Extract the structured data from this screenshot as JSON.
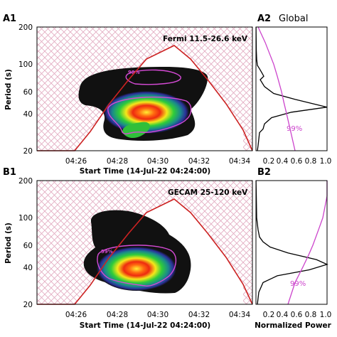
{
  "chart_data": [
    {
      "panel": "A1",
      "type": "heatmap",
      "annotation": "Fermi 11.5-26.6 keV",
      "xlabel": "Start Time (14-Jul-22 04:24:00)",
      "ylabel": "Period (s)",
      "x_ticks": [
        "04:26",
        "04:28",
        "04:30",
        "04:32",
        "04:34"
      ],
      "y_ticks": [
        20,
        40,
        60,
        100,
        200
      ],
      "xlim_minutes": [
        0.9,
        11.5
      ],
      "ylim": [
        20,
        200
      ],
      "y_scale": "log",
      "significance_label": "99%",
      "peak": {
        "time": "04:29:30",
        "period": 45
      },
      "cone_of_influence_peak": {
        "time": "04:29:40",
        "period": 150
      },
      "colors": {
        "coi": "#cc2222",
        "hatch": "#e8b4c8",
        "contour": "#cc44cc"
      }
    },
    {
      "panel": "A2",
      "type": "line",
      "title": "Global",
      "xlabel": "",
      "ylabel": "Period (s)",
      "x_ticks": [
        "0.2",
        "0.4",
        "0.6",
        "0.8",
        "1.0"
      ],
      "xlim": [
        0.0,
        1.0
      ],
      "ylim": [
        20,
        200
      ],
      "y_scale": "log",
      "series": [
        {
          "values_period": [
            20,
            22,
            28,
            30,
            33,
            37,
            41,
            45,
            52,
            58,
            66,
            75,
            80,
            86,
            92,
            98,
            110,
            130,
            160,
            200
          ],
          "values_power": [
            0.02,
            0.03,
            0.05,
            0.1,
            0.12,
            0.22,
            0.5,
            1.0,
            0.55,
            0.25,
            0.12,
            0.06,
            0.11,
            0.08,
            0.05,
            0.02,
            0.01,
            0.005,
            0.003,
            0.001
          ],
          "color": "#000000"
        },
        {
          "name": "99%",
          "values_period": [
            20,
            30,
            40,
            50,
            60,
            80,
            100,
            150,
            200
          ],
          "values_power": [
            0.55,
            0.48,
            0.43,
            0.39,
            0.36,
            0.3,
            0.25,
            0.13,
            0.03
          ],
          "color": "#cc44cc"
        }
      ],
      "label": "99%"
    },
    {
      "panel": "B1",
      "type": "heatmap",
      "annotation": "GECAM 25-120 keV",
      "xlabel": "Start Time (14-Jul-22 04:24:00)",
      "ylabel": "Period (s)",
      "x_ticks": [
        "04:26",
        "04:28",
        "04:30",
        "04:32",
        "04:34"
      ],
      "y_ticks": [
        20,
        40,
        60,
        100,
        200
      ],
      "xlim_minutes": [
        0.9,
        11.5
      ],
      "ylim": [
        20,
        200
      ],
      "y_scale": "log",
      "significance_label": "99%",
      "peak": {
        "time": "04:29:20",
        "period": 42
      },
      "cone_of_influence_peak": {
        "time": "04:29:40",
        "period": 150
      },
      "colors": {
        "coi": "#cc2222",
        "hatch": "#e8b4c8",
        "contour": "#cc44cc"
      }
    },
    {
      "panel": "B2",
      "type": "line",
      "title": "",
      "xlabel": "Normalized Power",
      "ylabel": "Period (s)",
      "x_ticks": [
        "0.2",
        "0.4",
        "0.6",
        "0.8",
        "1.0"
      ],
      "xlim": [
        0.0,
        1.0
      ],
      "ylim": [
        20,
        200
      ],
      "y_scale": "log",
      "series": [
        {
          "values_period": [
            20,
            25,
            30,
            34,
            38,
            42,
            46,
            52,
            58,
            64,
            70,
            80,
            100,
            150,
            200
          ],
          "values_power": [
            0.02,
            0.04,
            0.1,
            0.3,
            0.75,
            1.0,
            0.85,
            0.45,
            0.2,
            0.1,
            0.05,
            0.03,
            0.01,
            0.005,
            0.001
          ],
          "color": "#000000"
        },
        {
          "name": "99%",
          "values_period": [
            20,
            30,
            40,
            50,
            60,
            80,
            100,
            150,
            200
          ],
          "values_power": [
            0.45,
            0.55,
            0.66,
            0.74,
            0.8,
            0.88,
            0.94,
            1.0,
            1.0
          ],
          "color": "#cc44cc"
        }
      ],
      "label": "99%"
    }
  ]
}
